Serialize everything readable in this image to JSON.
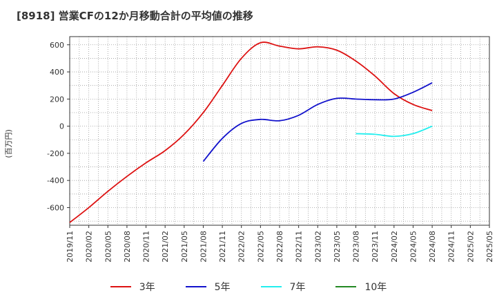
{
  "chart_data": {
    "type": "line",
    "title": "[8918]  営業CFの12か月移動合計の平均値の推移",
    "ylabel": "(百万円)",
    "xlabel": "",
    "ylim": [
      -730,
      660
    ],
    "yticks": [
      600,
      400,
      200,
      0,
      -200,
      -400,
      -600
    ],
    "categories": [
      "2019/11",
      "2020/02",
      "2020/05",
      "2020/08",
      "2020/11",
      "2021/02",
      "2021/05",
      "2021/08",
      "2021/11",
      "2022/02",
      "2022/05",
      "2022/08",
      "2022/11",
      "2023/02",
      "2023/05",
      "2023/08",
      "2023/11",
      "2024/02",
      "2024/05",
      "2024/08",
      "2024/11",
      "2025/02",
      "2025/05"
    ],
    "grid": true,
    "legend_position": "bottom",
    "series": [
      {
        "name": "3年",
        "color": "#dd1111",
        "values": [
          -710,
          -600,
          -480,
          -370,
          -270,
          -180,
          -60,
          100,
          300,
          500,
          615,
          590,
          570,
          585,
          560,
          480,
          370,
          240,
          160,
          115,
          null,
          null,
          null
        ]
      },
      {
        "name": "5年",
        "color": "#1111cc",
        "values": [
          null,
          null,
          null,
          null,
          null,
          null,
          null,
          -260,
          -90,
          20,
          50,
          40,
          80,
          160,
          205,
          200,
          195,
          200,
          250,
          320,
          null,
          null,
          null
        ]
      },
      {
        "name": "7年",
        "color": "#22eeee",
        "values": [
          null,
          null,
          null,
          null,
          null,
          null,
          null,
          null,
          null,
          null,
          null,
          null,
          null,
          null,
          null,
          -55,
          -60,
          -75,
          -55,
          0,
          null,
          null,
          null
        ]
      },
      {
        "name": "10年",
        "color": "#228822",
        "values": [
          null,
          null,
          null,
          null,
          null,
          null,
          null,
          null,
          null,
          null,
          null,
          null,
          null,
          null,
          null,
          null,
          null,
          null,
          null,
          null,
          null,
          null,
          null
        ]
      }
    ]
  }
}
